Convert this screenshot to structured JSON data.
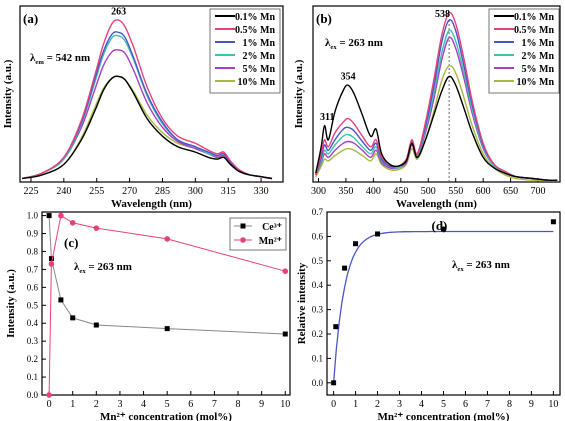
{
  "chart_data": [
    {
      "panel": "(a)",
      "type": "line",
      "annotation": "λ",
      "annotation_sub": "em",
      "annotation_value": " = 542 nm",
      "peak_label": "263",
      "xlabel": "Wavelength (nm)",
      "ylabel": "Intensity (a.u.)",
      "xlim": [
        220,
        340
      ],
      "xticks": [
        225,
        240,
        255,
        270,
        285,
        300,
        315,
        330
      ],
      "legend_placement": "top-right",
      "series": [
        {
          "name": "0.1% Mn",
          "color": "#000000",
          "x": [
            221,
            230,
            240,
            248,
            254,
            258,
            262,
            265,
            268,
            272,
            278,
            285,
            292,
            300,
            306,
            310,
            313,
            316,
            320,
            325,
            330,
            335
          ],
          "values": [
            0.02,
            0.04,
            0.1,
            0.24,
            0.4,
            0.52,
            0.59,
            0.6,
            0.58,
            0.5,
            0.36,
            0.26,
            0.2,
            0.17,
            0.14,
            0.13,
            0.14,
            0.1,
            0.06,
            0.04,
            0.03,
            0.02
          ]
        },
        {
          "name": "0.5% Mn",
          "color": "#e8417a",
          "x": [
            221,
            230,
            240,
            248,
            254,
            258,
            262,
            265,
            268,
            272,
            278,
            285,
            292,
            300,
            306,
            310,
            313,
            316,
            320,
            325,
            330,
            335
          ],
          "values": [
            0.02,
            0.05,
            0.14,
            0.35,
            0.6,
            0.78,
            0.9,
            0.92,
            0.88,
            0.76,
            0.54,
            0.36,
            0.26,
            0.22,
            0.18,
            0.16,
            0.17,
            0.12,
            0.07,
            0.04,
            0.03,
            0.02
          ]
        },
        {
          "name": "1% Mn",
          "color": "#4a55c8",
          "x": [
            221,
            230,
            240,
            248,
            254,
            258,
            262,
            265,
            268,
            272,
            278,
            285,
            292,
            300,
            306,
            310,
            313,
            316,
            320,
            325,
            330,
            335
          ],
          "values": [
            0.02,
            0.05,
            0.14,
            0.34,
            0.58,
            0.74,
            0.84,
            0.85,
            0.82,
            0.7,
            0.5,
            0.34,
            0.24,
            0.2,
            0.17,
            0.15,
            0.16,
            0.11,
            0.06,
            0.04,
            0.03,
            0.02
          ]
        },
        {
          "name": "2% Mn",
          "color": "#3fbfb0",
          "x": [
            221,
            230,
            240,
            248,
            254,
            258,
            262,
            265,
            268,
            272,
            278,
            285,
            292,
            300,
            306,
            310,
            313,
            316,
            320,
            325,
            330,
            335
          ],
          "values": [
            0.02,
            0.05,
            0.13,
            0.33,
            0.56,
            0.72,
            0.82,
            0.83,
            0.8,
            0.69,
            0.49,
            0.33,
            0.24,
            0.2,
            0.16,
            0.15,
            0.16,
            0.11,
            0.06,
            0.04,
            0.03,
            0.02
          ]
        },
        {
          "name": "5% Mn",
          "color": "#a63fc4",
          "x": [
            221,
            230,
            240,
            248,
            254,
            258,
            262,
            265,
            268,
            272,
            278,
            285,
            292,
            300,
            306,
            310,
            313,
            316,
            320,
            325,
            330,
            335
          ],
          "values": [
            0.02,
            0.05,
            0.13,
            0.31,
            0.52,
            0.66,
            0.74,
            0.75,
            0.73,
            0.63,
            0.45,
            0.31,
            0.23,
            0.19,
            0.16,
            0.14,
            0.15,
            0.1,
            0.06,
            0.04,
            0.03,
            0.02
          ]
        },
        {
          "name": "10% Mn",
          "color": "#a8b83c",
          "x": [
            221,
            230,
            240,
            248,
            254,
            258,
            262,
            265,
            268,
            272,
            278,
            285,
            292,
            300,
            306,
            310,
            313,
            316,
            320,
            325,
            330,
            335
          ],
          "values": [
            0.02,
            0.04,
            0.1,
            0.25,
            0.42,
            0.53,
            0.59,
            0.6,
            0.58,
            0.51,
            0.38,
            0.28,
            0.22,
            0.19,
            0.16,
            0.14,
            0.14,
            0.1,
            0.06,
            0.04,
            0.03,
            0.02
          ]
        }
      ]
    },
    {
      "panel": "(b)",
      "type": "line",
      "annotation": "λ",
      "annotation_sub": "ex",
      "annotation_value": " = 263 nm",
      "peak_labels": [
        "311",
        "354",
        "538"
      ],
      "xlabel": "Wavelength (nm)",
      "ylabel": "Intensity (a.u.)",
      "xlim": [
        290,
        740
      ],
      "xticks": [
        300,
        350,
        400,
        450,
        500,
        550,
        600,
        650,
        700
      ],
      "dashed_line_x": 538,
      "legend_placement": "top-right",
      "series": [
        {
          "name": "0.1% Mn",
          "color": "#000000",
          "x": [
            295,
            305,
            311,
            318,
            330,
            345,
            354,
            365,
            380,
            395,
            405,
            415,
            430,
            445,
            460,
            470,
            480,
            495,
            510,
            525,
            538,
            550,
            565,
            580,
            600,
            620,
            640,
            660,
            690,
            720,
            735
          ],
          "values": [
            0.05,
            0.2,
            0.32,
            0.24,
            0.4,
            0.52,
            0.55,
            0.5,
            0.38,
            0.26,
            0.3,
            0.16,
            0.1,
            0.09,
            0.12,
            0.22,
            0.14,
            0.24,
            0.38,
            0.52,
            0.6,
            0.55,
            0.42,
            0.28,
            0.14,
            0.08,
            0.05,
            0.03,
            0.02,
            0.01,
            0.01
          ]
        },
        {
          "name": "0.5% Mn",
          "color": "#e8417a",
          "x": [
            295,
            305,
            311,
            318,
            330,
            345,
            354,
            365,
            380,
            395,
            405,
            415,
            430,
            445,
            460,
            470,
            480,
            495,
            510,
            525,
            538,
            550,
            565,
            580,
            600,
            620,
            640,
            660,
            690,
            720,
            735
          ],
          "values": [
            0.04,
            0.16,
            0.24,
            0.2,
            0.28,
            0.34,
            0.36,
            0.33,
            0.26,
            0.2,
            0.24,
            0.14,
            0.1,
            0.09,
            0.13,
            0.24,
            0.16,
            0.34,
            0.58,
            0.84,
            0.96,
            0.9,
            0.7,
            0.46,
            0.22,
            0.1,
            0.06,
            0.03,
            0.02,
            0.01,
            0.01
          ]
        },
        {
          "name": "1% Mn",
          "color": "#4a55c8",
          "x": [
            295,
            305,
            311,
            318,
            330,
            345,
            354,
            365,
            380,
            395,
            405,
            415,
            430,
            445,
            460,
            470,
            480,
            495,
            510,
            525,
            538,
            550,
            565,
            580,
            600,
            620,
            640,
            660,
            690,
            720,
            735
          ],
          "values": [
            0.04,
            0.14,
            0.21,
            0.18,
            0.24,
            0.3,
            0.31,
            0.29,
            0.23,
            0.18,
            0.22,
            0.13,
            0.09,
            0.09,
            0.12,
            0.23,
            0.16,
            0.32,
            0.54,
            0.8,
            0.92,
            0.86,
            0.66,
            0.44,
            0.21,
            0.1,
            0.06,
            0.03,
            0.02,
            0.01,
            0.01
          ]
        },
        {
          "name": "2% Mn",
          "color": "#3fbfb0",
          "x": [
            295,
            305,
            311,
            318,
            330,
            345,
            354,
            365,
            380,
            395,
            405,
            415,
            430,
            445,
            460,
            470,
            480,
            495,
            510,
            525,
            538,
            550,
            565,
            580,
            600,
            620,
            640,
            660,
            690,
            720,
            735
          ],
          "values": [
            0.04,
            0.12,
            0.18,
            0.16,
            0.21,
            0.26,
            0.27,
            0.25,
            0.2,
            0.16,
            0.2,
            0.12,
            0.09,
            0.08,
            0.12,
            0.22,
            0.15,
            0.3,
            0.5,
            0.74,
            0.86,
            0.8,
            0.62,
            0.41,
            0.2,
            0.09,
            0.05,
            0.03,
            0.02,
            0.01,
            0.01
          ]
        },
        {
          "name": "5% Mn",
          "color": "#a63fc4",
          "x": [
            295,
            305,
            311,
            318,
            330,
            345,
            354,
            365,
            380,
            395,
            405,
            415,
            430,
            445,
            460,
            470,
            480,
            495,
            510,
            525,
            538,
            550,
            565,
            580,
            600,
            620,
            640,
            660,
            690,
            720,
            735
          ],
          "values": [
            0.04,
            0.11,
            0.16,
            0.14,
            0.18,
            0.22,
            0.23,
            0.22,
            0.18,
            0.14,
            0.18,
            0.11,
            0.08,
            0.08,
            0.11,
            0.21,
            0.14,
            0.28,
            0.47,
            0.7,
            0.82,
            0.76,
            0.59,
            0.39,
            0.19,
            0.09,
            0.05,
            0.03,
            0.02,
            0.01,
            0.01
          ]
        },
        {
          "name": "10% Mn",
          "color": "#a8b83c",
          "x": [
            295,
            305,
            311,
            318,
            330,
            345,
            354,
            365,
            380,
            395,
            405,
            415,
            430,
            445,
            460,
            470,
            480,
            495,
            510,
            525,
            538,
            550,
            565,
            580,
            600,
            620,
            640,
            660,
            690,
            720,
            735
          ],
          "values": [
            0.03,
            0.09,
            0.13,
            0.12,
            0.15,
            0.18,
            0.19,
            0.18,
            0.15,
            0.12,
            0.16,
            0.1,
            0.07,
            0.07,
            0.1,
            0.19,
            0.13,
            0.24,
            0.4,
            0.58,
            0.66,
            0.62,
            0.48,
            0.32,
            0.16,
            0.08,
            0.04,
            0.02,
            0.01,
            0.01,
            0.01
          ]
        }
      ]
    },
    {
      "panel": "(c)",
      "type": "line",
      "annotation": "λ",
      "annotation_sub": "ex",
      "annotation_value": " = 263 nm",
      "xlabel": "Mn²⁺ concentration (mol%)",
      "ylabel": "Intensity (a.u.)",
      "xlim": [
        -0.3,
        10.2
      ],
      "ylim": [
        0,
        1.02
      ],
      "xticks": [
        0,
        1,
        2,
        3,
        4,
        5,
        6,
        7,
        8,
        9,
        10
      ],
      "yticks": [
        "0.0",
        "0.1",
        "0.2",
        "0.3",
        "0.4",
        "0.5",
        "0.6",
        "0.7",
        "0.8",
        "0.9",
        "1.0"
      ],
      "legend_placement": "top-right",
      "series": [
        {
          "name": "Ce³⁺",
          "color": "#000000",
          "marker": "square",
          "x": [
            0,
            0.1,
            0.5,
            1,
            2,
            5,
            10
          ],
          "values": [
            1.0,
            0.76,
            0.53,
            0.43,
            0.39,
            0.37,
            0.34
          ]
        },
        {
          "name": "Mn²⁺",
          "color": "#e8417a",
          "marker": "circle",
          "x": [
            0,
            0.1,
            0.5,
            1,
            2,
            5,
            10
          ],
          "values": [
            0.0,
            0.73,
            1.0,
            0.96,
            0.93,
            0.87,
            0.69
          ]
        }
      ]
    },
    {
      "panel": "(d)",
      "type": "scatter",
      "annotation": "λ",
      "annotation_sub": "ex",
      "annotation_value": " = 263 nm",
      "xlabel": "Mn²⁺ concentration (mol%)",
      "ylabel": "Relative intensity",
      "xlim": [
        -0.3,
        10.3
      ],
      "ylim": [
        -0.05,
        0.7
      ],
      "xticks": [
        0,
        1,
        2,
        3,
        4,
        5,
        6,
        7,
        8,
        9,
        10
      ],
      "yticks": [
        "0.0",
        "0.1",
        "0.2",
        "0.3",
        "0.4",
        "0.5",
        "0.6",
        "0.7"
      ],
      "points": {
        "x": [
          0,
          0.1,
          0.5,
          1,
          2,
          5,
          10
        ],
        "values": [
          0.0,
          0.23,
          0.47,
          0.57,
          0.61,
          0.63,
          0.66
        ],
        "color": "#000000"
      },
      "fit": {
        "color": "#4a55c8",
        "asymptote": 0.62,
        "rate": 2.0
      }
    }
  ]
}
